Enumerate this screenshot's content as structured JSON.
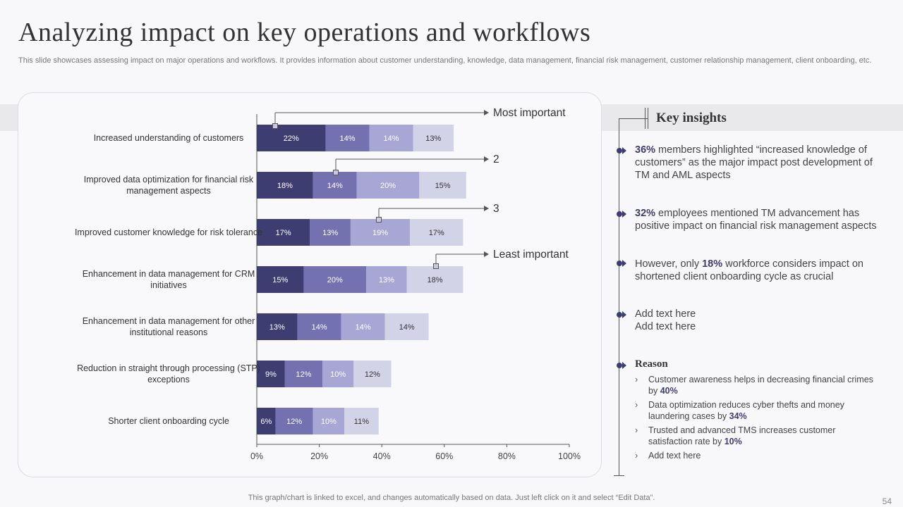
{
  "title": "Analyzing impact on key operations and workflows",
  "subtitle": "This slide showcases assessing impact on major operations and workflows. It provides information about customer understanding, knowledge, data management, financial risk management, customer relationship management, client onboarding, etc.",
  "colors": {
    "rank1": "#3e3d72",
    "rank2": "#7471b1",
    "rank3": "#a8a6d4",
    "rank4": "#d3d3e8",
    "accent": "#3e3d72"
  },
  "chart_data": {
    "type": "bar",
    "orientation": "horizontal",
    "stacked": true,
    "categories": [
      "Increased understanding  of customers",
      "Improved data optimization for financial risk management aspects",
      "Improved customer knowledge for risk tolerance",
      "Enhancement in data management for CRM initiatives",
      "Enhancement in data management for other institutional reasons",
      "Reduction in straight through processing (STP) exceptions",
      "Shorter client onboarding cycle"
    ],
    "category_lines": [
      [
        "Increased understanding  of customers"
      ],
      [
        "Improved data optimization for financial risk",
        "management aspects"
      ],
      [
        "Improved customer knowledge for risk tolerance"
      ],
      [
        "Enhancement in data management for CRM",
        "initiatives"
      ],
      [
        "Enhancement in data management for other",
        "institutional reasons"
      ],
      [
        "Reduction in straight through processing (STP)",
        "exceptions"
      ],
      [
        "Shorter client onboarding cycle"
      ]
    ],
    "series": [
      {
        "name": "Most important",
        "values": [
          22,
          18,
          17,
          15,
          13,
          9,
          6
        ]
      },
      {
        "name": "2",
        "values": [
          14,
          14,
          13,
          20,
          14,
          12,
          12
        ]
      },
      {
        "name": "3",
        "values": [
          14,
          20,
          19,
          13,
          14,
          10,
          10
        ]
      },
      {
        "name": "Least important",
        "values": [
          13,
          15,
          17,
          18,
          14,
          12,
          11
        ]
      }
    ],
    "xlim": [
      0,
      100
    ],
    "xticks": [
      "0%",
      "20%",
      "40%",
      "60%",
      "80%",
      "100%"
    ],
    "value_suffix": "%",
    "legend": "callouts on first bar, top-right"
  },
  "insights": {
    "heading": "Key insights",
    "items": [
      {
        "highlight": "36%",
        "text": " members highlighted “increased knowledge of customers” as the major impact post development of TM and AML aspects"
      },
      {
        "highlight": "32%",
        "text": " employees mentioned TM advancement has positive impact on financial risk management aspects"
      },
      {
        "pre": "However, only ",
        "highlight": "18%",
        "text": " workforce considers impact on shortened client onboarding cycle as crucial"
      },
      {
        "line1": "Add text here",
        "line2": "Add text here"
      }
    ],
    "reason": {
      "heading": "Reason",
      "chevron": "›",
      "items": [
        {
          "text": "Customer awareness helps in decreasing financial crimes by ",
          "highlight": "40%"
        },
        {
          "text": "Data optimization reduces cyber thefts and money laundering cases by ",
          "highlight": "34%"
        },
        {
          "text": "Trusted and advanced TMS increases customer satisfaction rate by ",
          "highlight": "10%"
        },
        {
          "text": "Add text here",
          "highlight": ""
        }
      ]
    }
  },
  "footer": "This graph/chart is linked to excel,  and changes automatically based on data. Just left click on it and select “Edit Data”.",
  "page_number": "54"
}
